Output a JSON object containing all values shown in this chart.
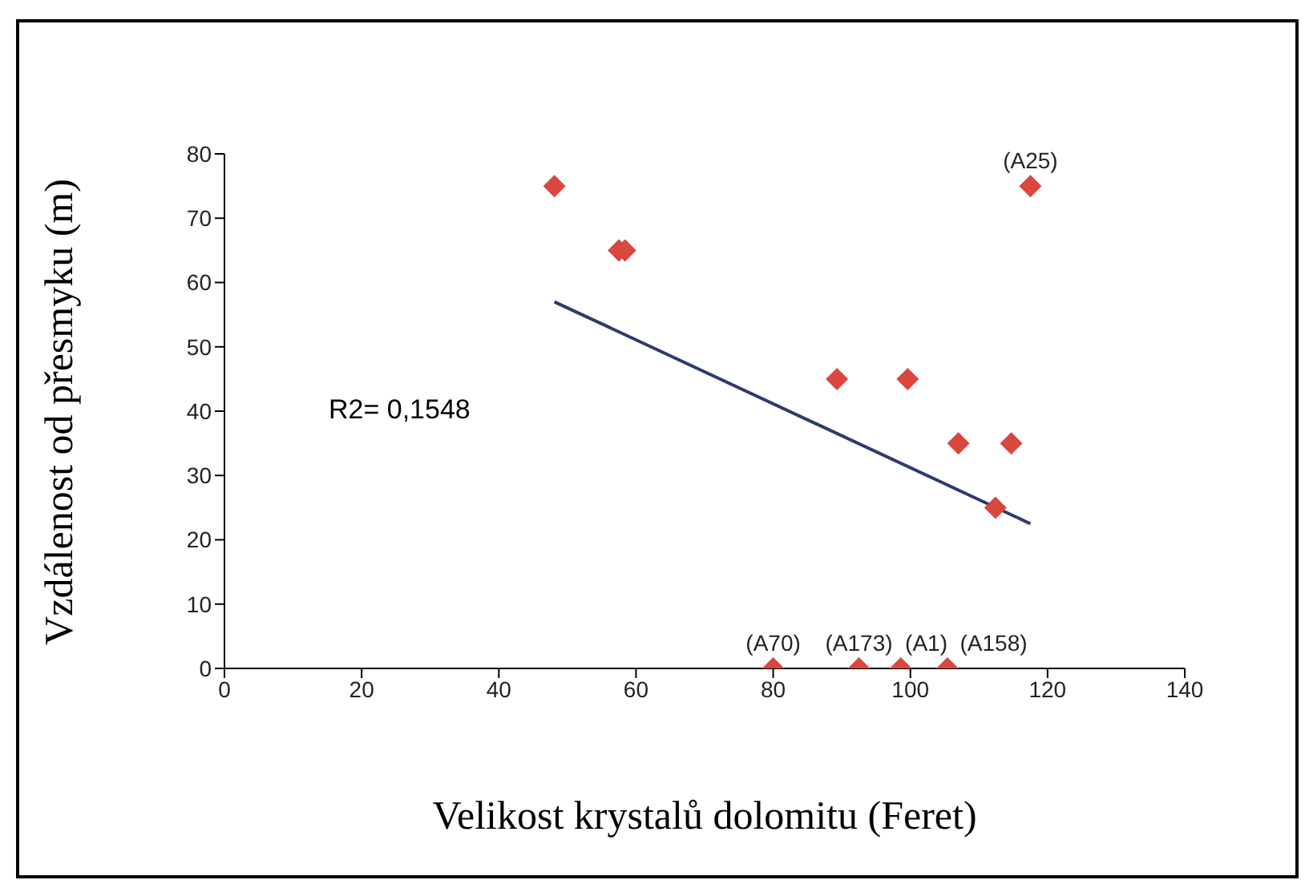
{
  "chart_data": {
    "type": "scatter",
    "xlabel": "Velikost krystalů dolomitu (Feret)",
    "ylabel": "Vzdálenost od přesmyku (m)",
    "xlim": [
      0,
      140
    ],
    "xticks": [
      0,
      20,
      40,
      60,
      80,
      100,
      120,
      140
    ],
    "ylim": [
      0,
      80
    ],
    "yticks": [
      0,
      10,
      20,
      30,
      40,
      50,
      60,
      70,
      80
    ],
    "grid": false,
    "marker": "diamond",
    "series": [
      {
        "color": "#d9473f",
        "x": [
          48.1,
          57.5,
          58.4,
          89.3,
          99.6,
          107,
          112.4,
          114.7,
          117.5,
          80,
          92.5,
          98.6,
          105.4
        ],
        "values": [
          75,
          65,
          65,
          45,
          45,
          35,
          25,
          35,
          75,
          0,
          0,
          0,
          0
        ]
      },
      {
        "type": "line",
        "color": "#2e3a6e",
        "marker": "none",
        "x": [
          48.1,
          117.5
        ],
        "values": [
          57,
          22.5
        ]
      }
    ],
    "annotations": [
      "R2= 0,1548",
      {
        "text": "(A25)",
        "x": 117.5,
        "y": 75
      },
      {
        "text": "(A70)",
        "x": 80,
        "y": 0
      },
      {
        "text": "(A173)",
        "x": 92.5,
        "y": 0
      },
      {
        "text": "(A1)",
        "x": 98.6,
        "y": 0
      },
      {
        "text": "(A158)",
        "x": 105.4,
        "y": 0
      }
    ]
  }
}
